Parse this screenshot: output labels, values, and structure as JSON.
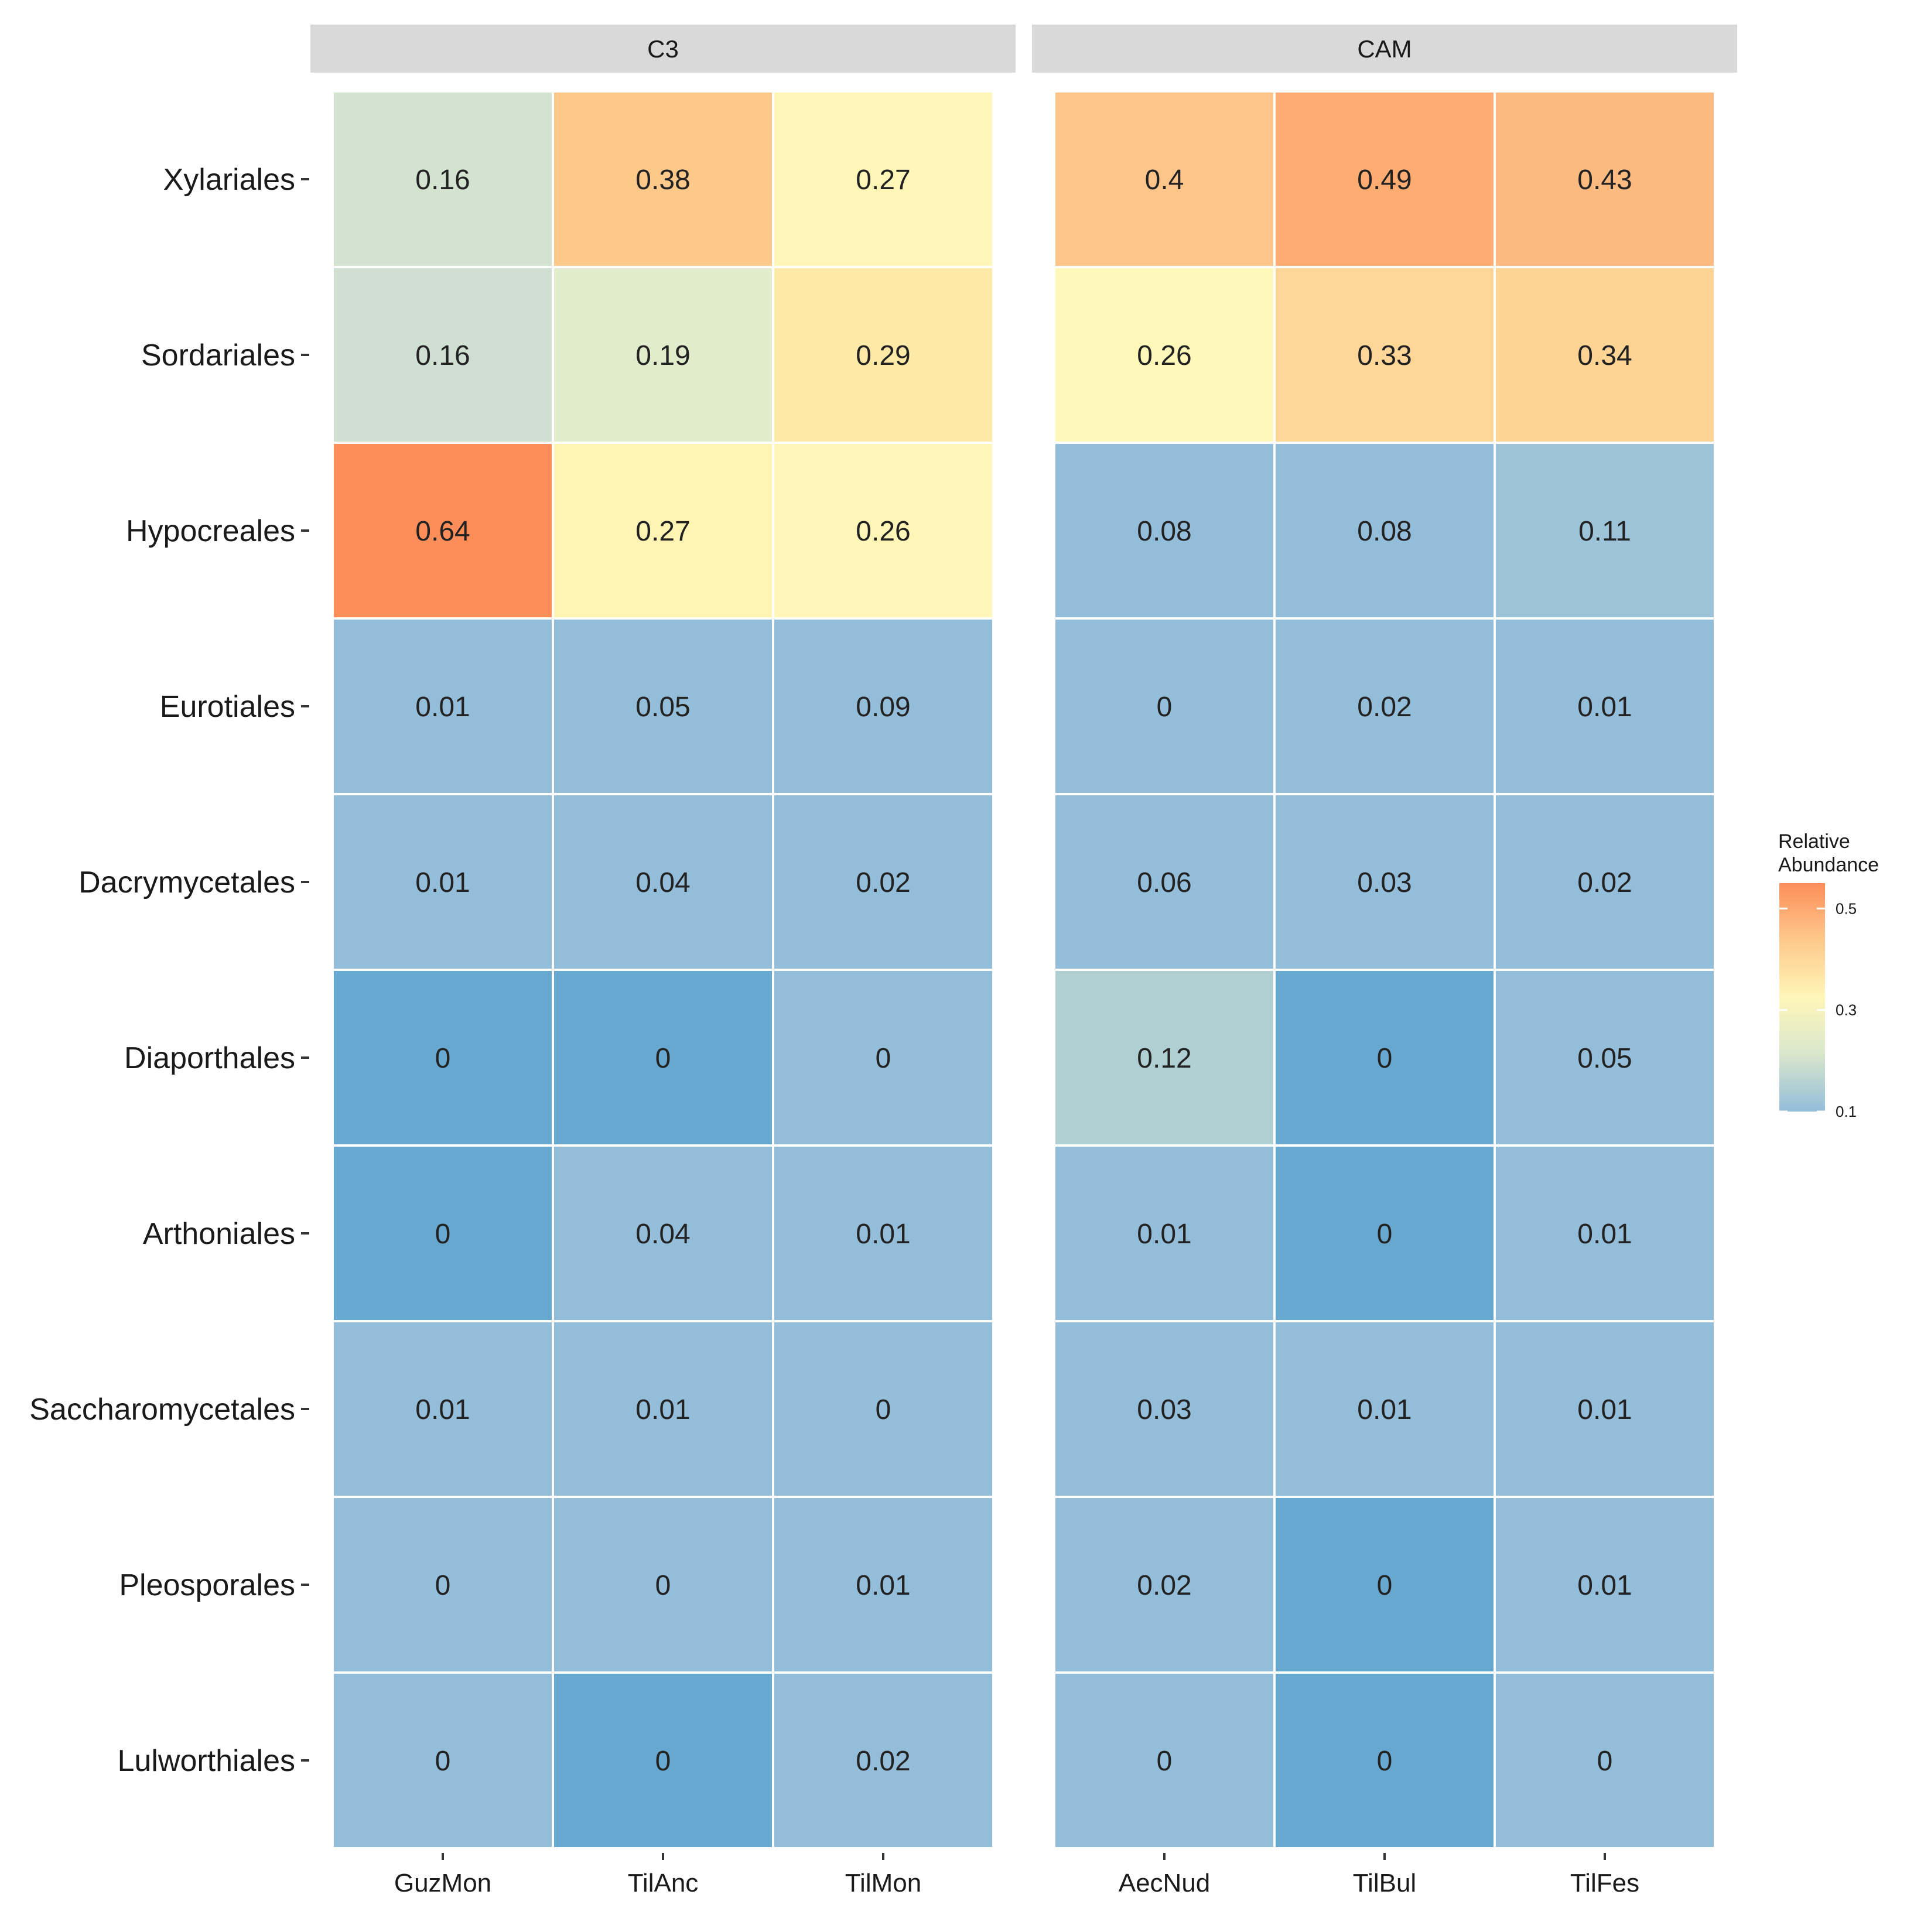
{
  "chart_data": {
    "type": "heatmap",
    "title": "",
    "xlabel": "",
    "ylabel": "",
    "rows": [
      "Xylariales",
      "Sordariales",
      "Hypocreales",
      "Eurotiales",
      "Dacrymycetales",
      "Diaporthales",
      "Arthoniales",
      "Saccharomycetales",
      "Pleosporales",
      "Lulworthiales"
    ],
    "facets": [
      {
        "name": "C3",
        "columns": [
          "GuzMon",
          "TilAnc",
          "TilMon"
        ],
        "values": [
          [
            0.16,
            0.38,
            0.27
          ],
          [
            0.16,
            0.19,
            0.29
          ],
          [
            0.64,
            0.27,
            0.26
          ],
          [
            0.01,
            0.05,
            0.09
          ],
          [
            0.01,
            0.04,
            0.02
          ],
          [
            0,
            0,
            0
          ],
          [
            0,
            0.04,
            0.01
          ],
          [
            0.01,
            0.01,
            0
          ],
          [
            0,
            0,
            0.01
          ],
          [
            0,
            0,
            0.02
          ]
        ],
        "labels": [
          [
            "0.16",
            "0.38",
            "0.27"
          ],
          [
            "0.16",
            "0.19",
            "0.29"
          ],
          [
            "0.64",
            "0.27",
            "0.26"
          ],
          [
            "0.01",
            "0.05",
            "0.09"
          ],
          [
            "0.01",
            "0.04",
            "0.02"
          ],
          [
            "0",
            "0",
            "0"
          ],
          [
            "0",
            "0.04",
            "0.01"
          ],
          [
            "0.01",
            "0.01",
            "0"
          ],
          [
            "0",
            "0",
            "0.01"
          ],
          [
            "0",
            "0",
            "0.02"
          ]
        ],
        "cell_colors": [
          [
            "#d3e3d0",
            "#fdc98b",
            "#fff6b8"
          ],
          [
            "#cfe0d2",
            "#e1eccc",
            "#feeaa6"
          ],
          [
            "#fd8e5a",
            "#fff4b4",
            "#fff6b8"
          ],
          [
            "#93bdd9",
            "#93bdd9",
            "#93bdd9"
          ],
          [
            "#93bdd9",
            "#93bdd9",
            "#93bdd9"
          ],
          [
            "#66a8cf",
            "#66a8cf",
            "#93bdd9"
          ],
          [
            "#66a8cf",
            "#93bdd9",
            "#93bdd9"
          ],
          [
            "#93bdd9",
            "#93bdd9",
            "#93bdd9"
          ],
          [
            "#93bdd9",
            "#93bdd9",
            "#93bdd9"
          ],
          [
            "#93bdd9",
            "#66a8cf",
            "#93bdd9"
          ]
        ]
      },
      {
        "name": "CAM",
        "columns": [
          "AecNud",
          "TilBul",
          "TilFes"
        ],
        "values": [
          [
            0.4,
            0.49,
            0.43
          ],
          [
            0.26,
            0.33,
            0.34
          ],
          [
            0.08,
            0.08,
            0.11
          ],
          [
            0,
            0.02,
            0.01
          ],
          [
            0.06,
            0.03,
            0.02
          ],
          [
            0.12,
            0,
            0.05
          ],
          [
            0.01,
            0,
            0.01
          ],
          [
            0.03,
            0.01,
            0.01
          ],
          [
            0.02,
            0,
            0.01
          ],
          [
            0,
            0,
            0
          ]
        ],
        "labels": [
          [
            "0.4",
            "0.49",
            "0.43"
          ],
          [
            "0.26",
            "0.33",
            "0.34"
          ],
          [
            "0.08",
            "0.08",
            "0.11"
          ],
          [
            "0",
            "0.02",
            "0.01"
          ],
          [
            "0.06",
            "0.03",
            "0.02"
          ],
          [
            "0.12",
            "0",
            "0.05"
          ],
          [
            "0.01",
            "0",
            "0.01"
          ],
          [
            "0.03",
            "0.01",
            "0.01"
          ],
          [
            "0.02",
            "0",
            "0.01"
          ],
          [
            "0",
            "0",
            "0"
          ]
        ],
        "cell_colors": [
          [
            "#fdc58a",
            "#fdac72",
            "#fdba80"
          ],
          [
            "#fff8b9",
            "#fed698",
            "#fed494"
          ],
          [
            "#93bdd9",
            "#93bdd9",
            "#9dc3d8"
          ],
          [
            "#93bdd9",
            "#93bdd9",
            "#93bdd9"
          ],
          [
            "#93bdd9",
            "#93bdd9",
            "#93bdd9"
          ],
          [
            "#b0cfd3",
            "#66a8cf",
            "#93bdd9"
          ],
          [
            "#93bdd9",
            "#66a8cf",
            "#93bdd9"
          ],
          [
            "#93bdd9",
            "#93bdd9",
            "#93bdd9"
          ],
          [
            "#93bdd9",
            "#66a8cf",
            "#93bdd9"
          ],
          [
            "#93bdd9",
            "#66a8cf",
            "#93bdd9"
          ]
        ]
      }
    ],
    "legend": {
      "title_lines": [
        "Relative",
        "Abundance"
      ],
      "position": "right",
      "ticks": [
        0.5,
        0.3,
        0.1
      ],
      "tick_labels": [
        "0.5",
        "0.3",
        "0.1"
      ],
      "range": [
        0.1,
        0.55
      ],
      "colors": [
        "#fd8e5a",
        "#fdc98b",
        "#fff6b8",
        "#d8e6cc",
        "#93bdd9"
      ]
    }
  }
}
